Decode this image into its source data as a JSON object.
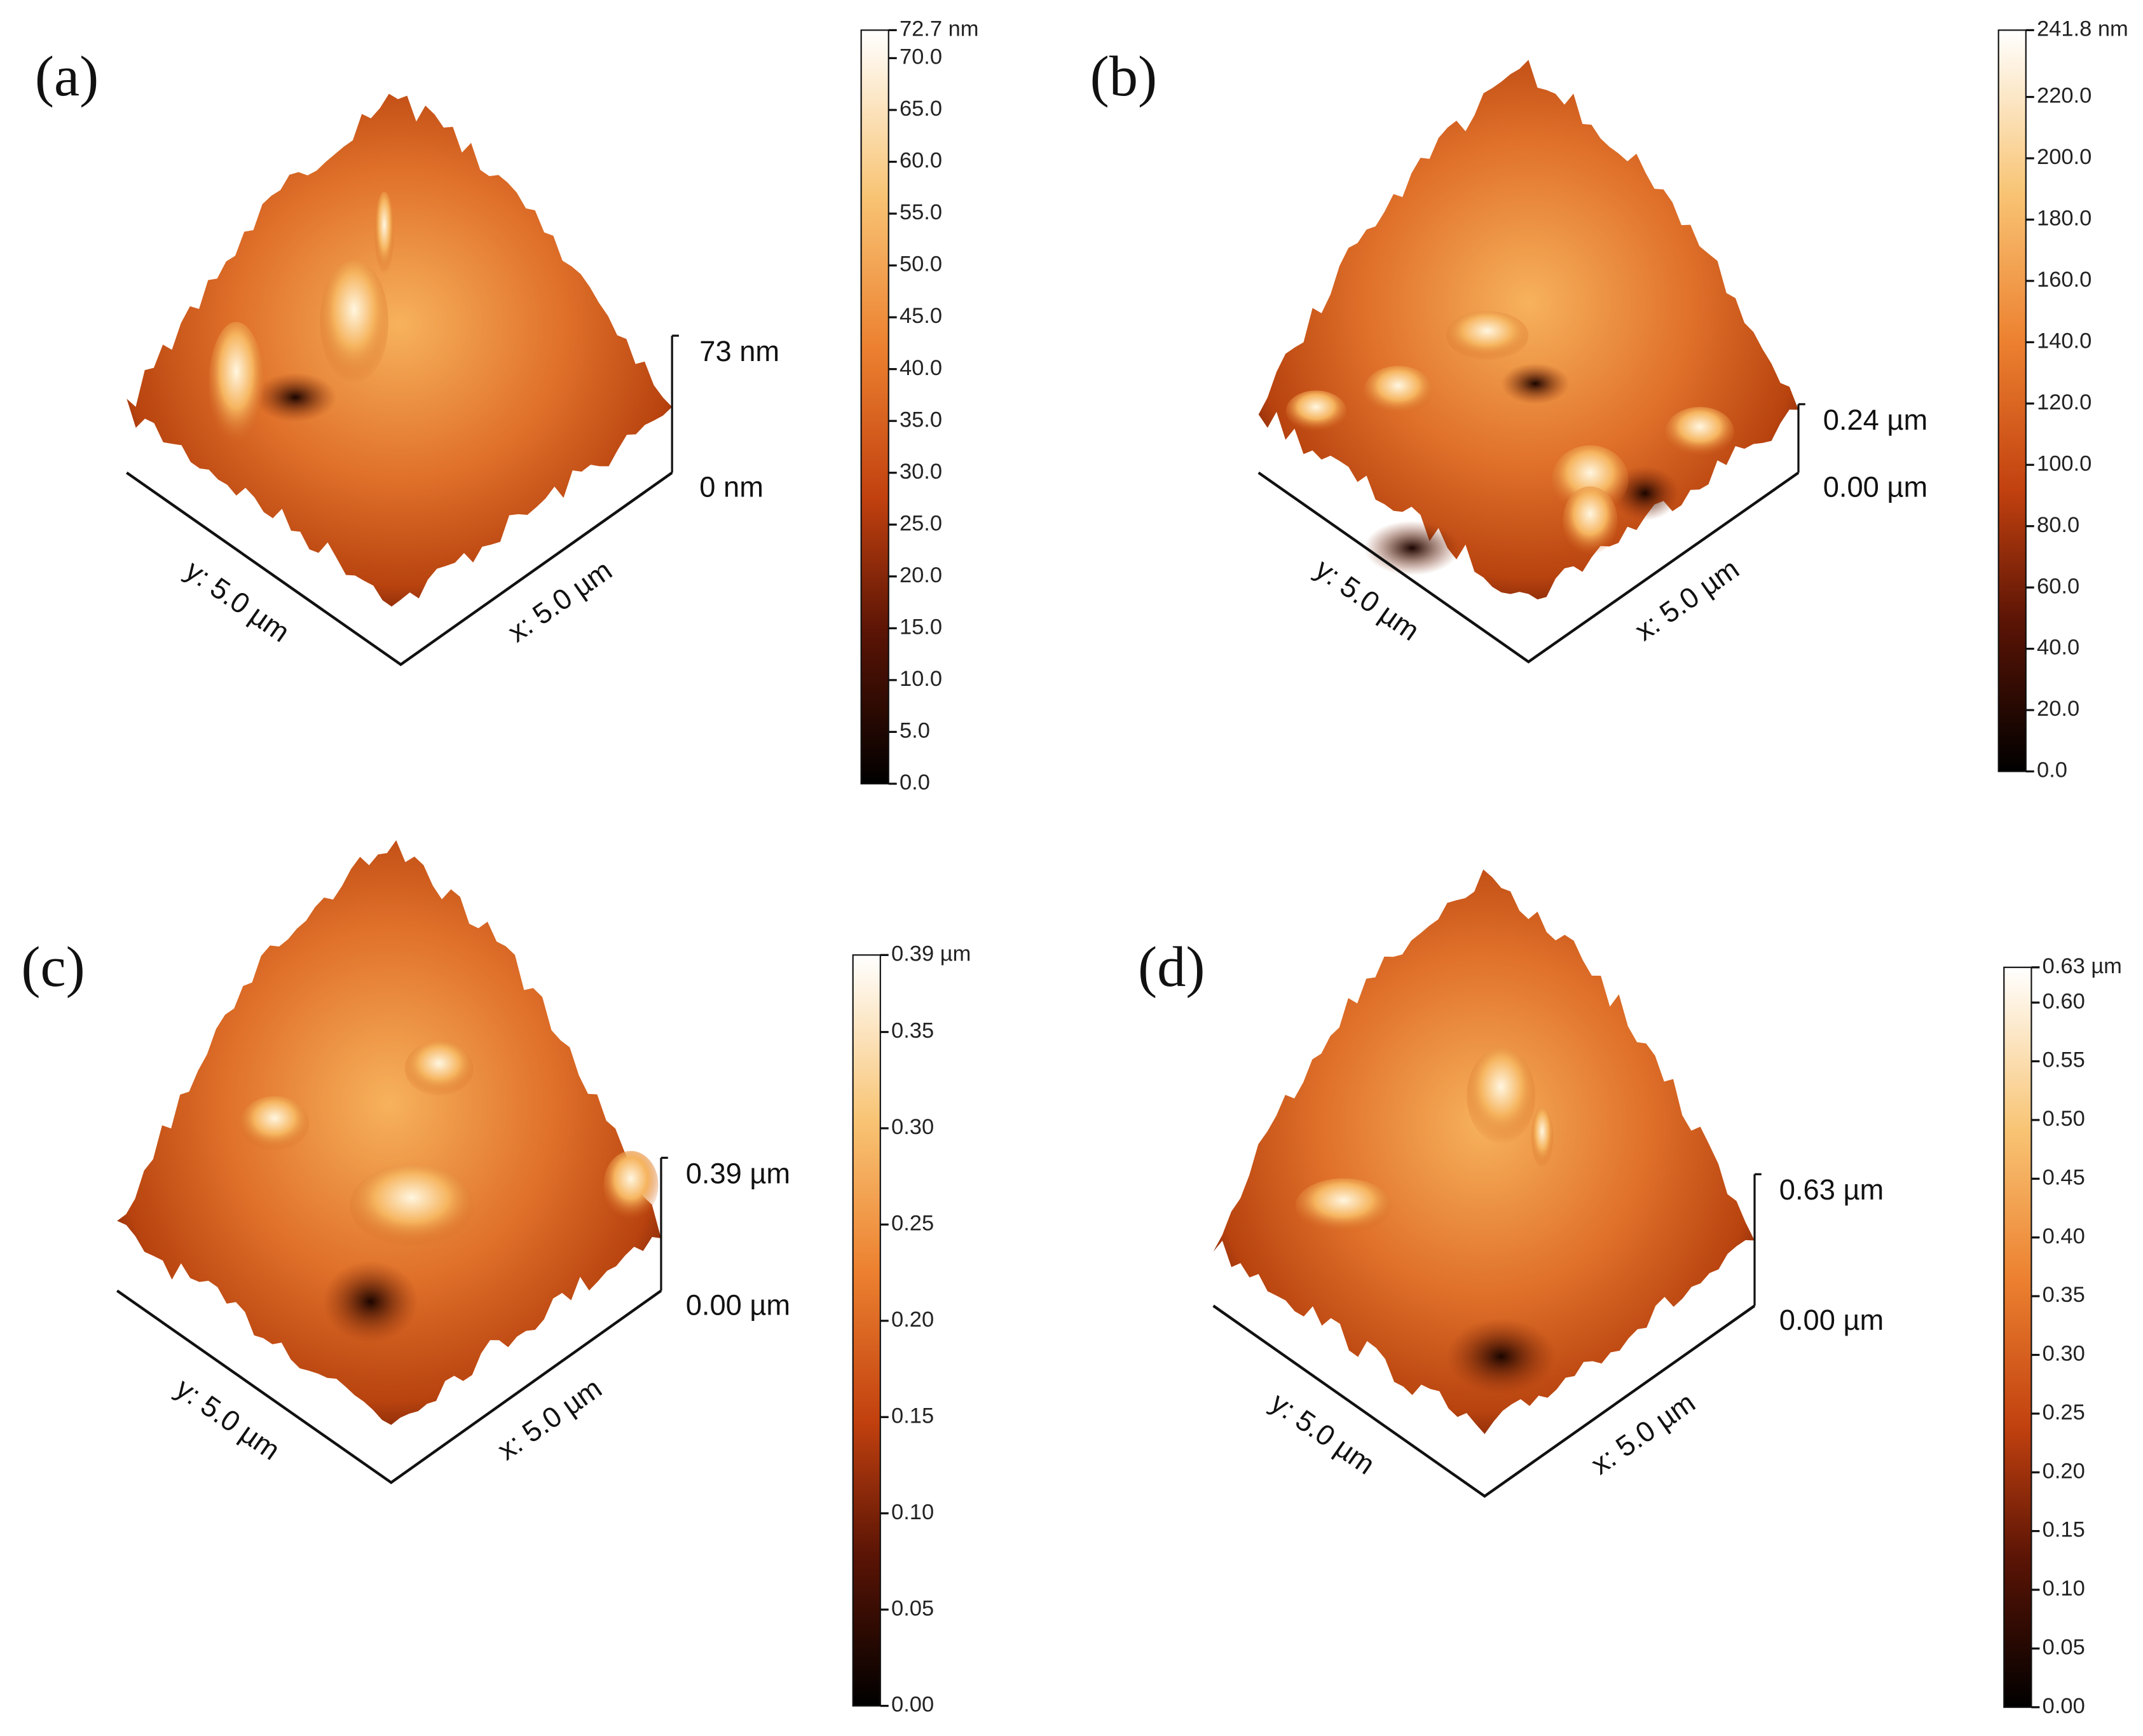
{
  "panels": [
    {
      "label": "(a)",
      "scale_label": "72.7 nm",
      "z_top": "73 nm",
      "z_bottom": "0 nm",
      "y_axis": "y: 5.0 µm",
      "x_axis": "x: 5.0 µm",
      "colorbar": {
        "lim": [
          0,
          72.7
        ],
        "ticks": [
          {
            "value": 0,
            "label": "0.0"
          },
          {
            "value": 5,
            "label": "5.0"
          },
          {
            "value": 10,
            "label": "10.0"
          },
          {
            "value": 15,
            "label": "15.0"
          },
          {
            "value": 20,
            "label": "20.0"
          },
          {
            "value": 25,
            "label": "25.0"
          },
          {
            "value": 30,
            "label": "30.0"
          },
          {
            "value": 35,
            "label": "35.0"
          },
          {
            "value": 40,
            "label": "40.0"
          },
          {
            "value": 45,
            "label": "45.0"
          },
          {
            "value": 50,
            "label": "50.0"
          },
          {
            "value": 55,
            "label": "55.0"
          },
          {
            "value": 60,
            "label": "60.0"
          },
          {
            "value": 65,
            "label": "65.0"
          },
          {
            "value": 70,
            "label": "70.0"
          }
        ]
      }
    },
    {
      "label": "(b)",
      "scale_label": "241.8 nm",
      "z_top": "0.24 µm",
      "z_bottom": "0.00 µm",
      "y_axis": "y: 5.0 µm",
      "x_axis": "x: 5.0 µm",
      "colorbar": {
        "lim": [
          0,
          241.8
        ],
        "ticks": [
          {
            "value": 0,
            "label": "0.0"
          },
          {
            "value": 20,
            "label": "20.0"
          },
          {
            "value": 40,
            "label": "40.0"
          },
          {
            "value": 60,
            "label": "60.0"
          },
          {
            "value": 80,
            "label": "80.0"
          },
          {
            "value": 100,
            "label": "100.0"
          },
          {
            "value": 120,
            "label": "120.0"
          },
          {
            "value": 140,
            "label": "140.0"
          },
          {
            "value": 160,
            "label": "160.0"
          },
          {
            "value": 180,
            "label": "180.0"
          },
          {
            "value": 200,
            "label": "200.0"
          },
          {
            "value": 220,
            "label": "220.0"
          }
        ]
      }
    },
    {
      "label": "(c)",
      "scale_label": "0.39 µm",
      "z_top": "0.39 µm",
      "z_bottom": "0.00 µm",
      "y_axis": "y: 5.0 µm",
      "x_axis": "x: 5.0 µm",
      "colorbar": {
        "lim": [
          0,
          0.39
        ],
        "ticks": [
          {
            "value": 0,
            "label": "0.00"
          },
          {
            "value": 0.05,
            "label": "0.05"
          },
          {
            "value": 0.1,
            "label": "0.10"
          },
          {
            "value": 0.15,
            "label": "0.15"
          },
          {
            "value": 0.2,
            "label": "0.20"
          },
          {
            "value": 0.25,
            "label": "0.25"
          },
          {
            "value": 0.3,
            "label": "0.30"
          },
          {
            "value": 0.35,
            "label": "0.35"
          }
        ]
      }
    },
    {
      "label": "(d)",
      "scale_label": "0.63 µm",
      "z_top": "0.63 µm",
      "z_bottom": "0.00 µm",
      "y_axis": "y: 5.0 µm",
      "x_axis": "x: 5.0 µm",
      "colorbar": {
        "lim": [
          0,
          0.63
        ],
        "ticks": [
          {
            "value": 0,
            "label": "0.00"
          },
          {
            "value": 0.05,
            "label": "0.05"
          },
          {
            "value": 0.1,
            "label": "0.10"
          },
          {
            "value": 0.15,
            "label": "0.15"
          },
          {
            "value": 0.2,
            "label": "0.20"
          },
          {
            "value": 0.25,
            "label": "0.25"
          },
          {
            "value": 0.3,
            "label": "0.30"
          },
          {
            "value": 0.35,
            "label": "0.35"
          },
          {
            "value": 0.4,
            "label": "0.40"
          },
          {
            "value": 0.45,
            "label": "0.45"
          },
          {
            "value": 0.5,
            "label": "0.50"
          },
          {
            "value": 0.55,
            "label": "0.55"
          },
          {
            "value": 0.6,
            "label": "0.60"
          }
        ]
      }
    }
  ]
}
